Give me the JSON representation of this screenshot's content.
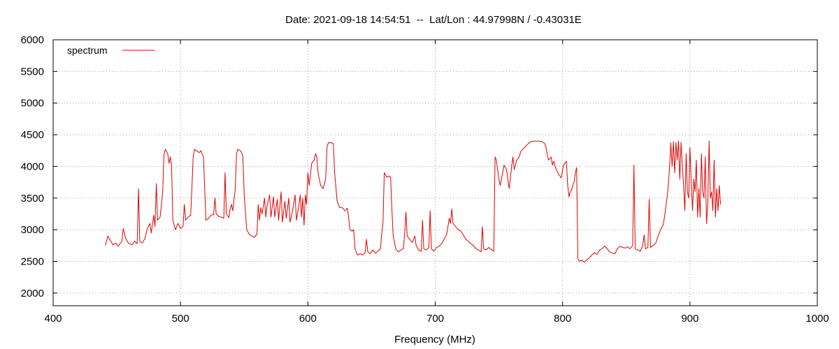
{
  "chart_data": {
    "type": "line",
    "title": "Date: 2021-09-18 14:54:51  --  Lat/Lon : 44.97998N / -0.43031E",
    "xlabel": "Frequency (MHz)",
    "ylabel": "",
    "xlim": [
      400,
      1000
    ],
    "ylim": [
      1800,
      6000
    ],
    "x_ticks": [
      400,
      500,
      600,
      700,
      800,
      900,
      1000
    ],
    "y_ticks": [
      2000,
      2500,
      3000,
      3500,
      4000,
      4500,
      5000,
      5500,
      6000
    ],
    "grid": true,
    "legend_position": "top-left",
    "series": [
      {
        "name": "spectrum",
        "color": "#e00000",
        "points": [
          [
            441,
            2750
          ],
          [
            443,
            2900
          ],
          [
            445,
            2830
          ],
          [
            447,
            2760
          ],
          [
            449,
            2790
          ],
          [
            451,
            2740
          ],
          [
            454,
            2820
          ],
          [
            455,
            3020
          ],
          [
            457,
            2860
          ],
          [
            459,
            2790
          ],
          [
            462,
            2760
          ],
          [
            464,
            2820
          ],
          [
            466,
            2780
          ],
          [
            467,
            3650
          ],
          [
            468,
            2820
          ],
          [
            470,
            2790
          ],
          [
            472,
            2860
          ],
          [
            474,
            3020
          ],
          [
            476,
            3100
          ],
          [
            477,
            2950
          ],
          [
            479,
            3230
          ],
          [
            480,
            3050
          ],
          [
            481,
            3730
          ],
          [
            482,
            3150
          ],
          [
            484,
            3200
          ],
          [
            486,
            3600
          ],
          [
            487,
            4180
          ],
          [
            488,
            4270
          ],
          [
            490,
            4200
          ],
          [
            491,
            4050
          ],
          [
            492,
            4150
          ],
          [
            493,
            4000
          ],
          [
            494,
            3150
          ],
          [
            496,
            3000
          ],
          [
            498,
            3100
          ],
          [
            500,
            3020
          ],
          [
            502,
            3050
          ],
          [
            503,
            3400
          ],
          [
            504,
            3150
          ],
          [
            506,
            3200
          ],
          [
            508,
            3230
          ],
          [
            509,
            3700
          ],
          [
            510,
            4170
          ],
          [
            511,
            4270
          ],
          [
            513,
            4240
          ],
          [
            515,
            4220
          ],
          [
            516,
            4250
          ],
          [
            518,
            4150
          ],
          [
            519,
            3650
          ],
          [
            520,
            3150
          ],
          [
            522,
            3180
          ],
          [
            524,
            3230
          ],
          [
            526,
            3240
          ],
          [
            527,
            3500
          ],
          [
            528,
            3250
          ],
          [
            530,
            3210
          ],
          [
            532,
            3200
          ],
          [
            534,
            3180
          ],
          [
            535,
            3900
          ],
          [
            536,
            3250
          ],
          [
            538,
            3190
          ],
          [
            539,
            3330
          ],
          [
            540,
            3400
          ],
          [
            541,
            3300
          ],
          [
            543,
            3650
          ],
          [
            544,
            4200
          ],
          [
            545,
            4270
          ],
          [
            547,
            4250
          ],
          [
            548,
            4220
          ],
          [
            549,
            4150
          ],
          [
            550,
            3550
          ],
          [
            552,
            3000
          ],
          [
            554,
            2930
          ],
          [
            556,
            2900
          ],
          [
            558,
            2880
          ],
          [
            560,
            2930
          ],
          [
            561,
            3400
          ],
          [
            562,
            3150
          ],
          [
            563,
            3350
          ],
          [
            564,
            3250
          ],
          [
            566,
            3500
          ],
          [
            567,
            3200
          ],
          [
            568,
            3380
          ],
          [
            570,
            3550
          ],
          [
            571,
            3200
          ],
          [
            573,
            3520
          ],
          [
            574,
            3200
          ],
          [
            576,
            3480
          ],
          [
            577,
            3150
          ],
          [
            579,
            3600
          ],
          [
            580,
            3120
          ],
          [
            582,
            3450
          ],
          [
            583,
            3180
          ],
          [
            585,
            3500
          ],
          [
            586,
            3120
          ],
          [
            588,
            3300
          ],
          [
            590,
            3550
          ],
          [
            591,
            3150
          ],
          [
            593,
            3400
          ],
          [
            594,
            3550
          ],
          [
            595,
            3200
          ],
          [
            596,
            3500
          ],
          [
            597,
            3070
          ],
          [
            598,
            3550
          ],
          [
            599,
            3400
          ],
          [
            600,
            3900
          ],
          [
            601,
            3700
          ],
          [
            603,
            4050
          ],
          [
            605,
            4100
          ],
          [
            606,
            4200
          ],
          [
            607,
            4150
          ],
          [
            608,
            3900
          ],
          [
            610,
            3700
          ],
          [
            612,
            3650
          ],
          [
            614,
            3800
          ],
          [
            615,
            4300
          ],
          [
            616,
            4370
          ],
          [
            618,
            4380
          ],
          [
            620,
            4360
          ],
          [
            621,
            3900
          ],
          [
            623,
            3450
          ],
          [
            625,
            3350
          ],
          [
            627,
            3350
          ],
          [
            629,
            3300
          ],
          [
            631,
            3340
          ],
          [
            632,
            3200
          ],
          [
            633,
            3000
          ],
          [
            635,
            2980
          ],
          [
            636,
            3000
          ],
          [
            637,
            2700
          ],
          [
            639,
            2600
          ],
          [
            641,
            2620
          ],
          [
            643,
            2600
          ],
          [
            645,
            2640
          ],
          [
            646,
            2850
          ],
          [
            647,
            2650
          ],
          [
            649,
            2620
          ],
          [
            651,
            2680
          ],
          [
            653,
            2630
          ],
          [
            655,
            2660
          ],
          [
            657,
            2700
          ],
          [
            658,
            2950
          ],
          [
            659,
            3100
          ],
          [
            660,
            3900
          ],
          [
            662,
            3830
          ],
          [
            664,
            3850
          ],
          [
            665,
            3820
          ],
          [
            666,
            3300
          ],
          [
            667,
            2900
          ],
          [
            669,
            2700
          ],
          [
            671,
            2650
          ],
          [
            673,
            2680
          ],
          [
            675,
            2700
          ],
          [
            676,
            2950
          ],
          [
            677,
            3280
          ],
          [
            678,
            2900
          ],
          [
            680,
            2850
          ],
          [
            682,
            2800
          ],
          [
            684,
            2900
          ],
          [
            685,
            2750
          ],
          [
            687,
            2680
          ],
          [
            689,
            2660
          ],
          [
            690,
            3150
          ],
          [
            691,
            2700
          ],
          [
            693,
            2680
          ],
          [
            695,
            2720
          ],
          [
            696,
            3300
          ],
          [
            697,
            2700
          ],
          [
            699,
            2660
          ],
          [
            701,
            2720
          ],
          [
            703,
            2740
          ],
          [
            705,
            2780
          ],
          [
            707,
            2850
          ],
          [
            709,
            2930
          ],
          [
            710,
            3050
          ],
          [
            711,
            3180
          ],
          [
            712,
            3100
          ],
          [
            713,
            3330
          ],
          [
            714,
            3100
          ],
          [
            716,
            3050
          ],
          [
            718,
            3000
          ],
          [
            720,
            2980
          ],
          [
            722,
            2920
          ],
          [
            724,
            2850
          ],
          [
            726,
            2820
          ],
          [
            728,
            2780
          ],
          [
            730,
            2750
          ],
          [
            732,
            2700
          ],
          [
            734,
            2680
          ],
          [
            736,
            2650
          ],
          [
            737,
            3050
          ],
          [
            738,
            2700
          ],
          [
            740,
            2680
          ],
          [
            742,
            2720
          ],
          [
            744,
            2690
          ],
          [
            746,
            2660
          ],
          [
            747,
            4150
          ],
          [
            748,
            4100
          ],
          [
            750,
            3800
          ],
          [
            751,
            3700
          ],
          [
            752,
            3800
          ],
          [
            754,
            4020
          ],
          [
            756,
            3950
          ],
          [
            758,
            3650
          ],
          [
            760,
            4000
          ],
          [
            761,
            4150
          ],
          [
            762,
            3950
          ],
          [
            764,
            4100
          ],
          [
            766,
            4150
          ],
          [
            767,
            4230
          ],
          [
            769,
            4280
          ],
          [
            771,
            4320
          ],
          [
            773,
            4360
          ],
          [
            775,
            4390
          ],
          [
            778,
            4400
          ],
          [
            781,
            4400
          ],
          [
            784,
            4390
          ],
          [
            786,
            4360
          ],
          [
            787,
            4300
          ],
          [
            788,
            4180
          ],
          [
            789,
            4100
          ],
          [
            791,
            4150
          ],
          [
            792,
            4020
          ],
          [
            793,
            4080
          ],
          [
            795,
            3950
          ],
          [
            797,
            3870
          ],
          [
            799,
            3820
          ],
          [
            800,
            3950
          ],
          [
            801,
            4030
          ],
          [
            803,
            4080
          ],
          [
            804,
            3700
          ],
          [
            805,
            3520
          ],
          [
            806,
            3600
          ],
          [
            807,
            3620
          ],
          [
            808,
            3700
          ],
          [
            809,
            3750
          ],
          [
            810,
            3900
          ],
          [
            811,
            3980
          ],
          [
            812,
            2550
          ],
          [
            813,
            2500
          ],
          [
            815,
            2520
          ],
          [
            817,
            2490
          ],
          [
            819,
            2520
          ],
          [
            821,
            2560
          ],
          [
            823,
            2600
          ],
          [
            825,
            2640
          ],
          [
            827,
            2610
          ],
          [
            829,
            2680
          ],
          [
            831,
            2700
          ],
          [
            833,
            2740
          ],
          [
            835,
            2700
          ],
          [
            837,
            2650
          ],
          [
            839,
            2630
          ],
          [
            841,
            2620
          ],
          [
            843,
            2700
          ],
          [
            845,
            2740
          ],
          [
            847,
            2720
          ],
          [
            849,
            2710
          ],
          [
            851,
            2730
          ],
          [
            853,
            2700
          ],
          [
            855,
            2750
          ],
          [
            856,
            4020
          ],
          [
            857,
            2700
          ],
          [
            859,
            2680
          ],
          [
            861,
            2660
          ],
          [
            863,
            2750
          ],
          [
            864,
            2920
          ],
          [
            865,
            2700
          ],
          [
            867,
            2720
          ],
          [
            868,
            3480
          ],
          [
            869,
            2720
          ],
          [
            871,
            2750
          ],
          [
            873,
            2780
          ],
          [
            875,
            2900
          ],
          [
            877,
            3000
          ],
          [
            879,
            3080
          ],
          [
            880,
            3200
          ],
          [
            881,
            3350
          ],
          [
            882,
            3500
          ],
          [
            883,
            3700
          ],
          [
            884,
            4000
          ],
          [
            885,
            4370
          ],
          [
            886,
            4000
          ],
          [
            887,
            4390
          ],
          [
            888,
            3900
          ],
          [
            889,
            4380
          ],
          [
            890,
            4100
          ],
          [
            891,
            4400
          ],
          [
            892,
            3800
          ],
          [
            893,
            4380
          ],
          [
            894,
            4000
          ],
          [
            895,
            3700
          ],
          [
            896,
            3300
          ],
          [
            897,
            4200
          ],
          [
            898,
            3600
          ],
          [
            899,
            3500
          ],
          [
            900,
            4300
          ],
          [
            901,
            3750
          ],
          [
            902,
            3300
          ],
          [
            903,
            3800
          ],
          [
            904,
            3600
          ],
          [
            905,
            4100
          ],
          [
            906,
            3200
          ],
          [
            907,
            3650
          ],
          [
            908,
            3200
          ],
          [
            909,
            4200
          ],
          [
            910,
            3600
          ],
          [
            911,
            3500
          ],
          [
            912,
            4150
          ],
          [
            913,
            3100
          ],
          [
            914,
            3400
          ],
          [
            915,
            4400
          ],
          [
            916,
            3500
          ],
          [
            917,
            3600
          ],
          [
            918,
            3300
          ],
          [
            919,
            4100
          ],
          [
            920,
            3200
          ],
          [
            921,
            3650
          ],
          [
            922,
            3300
          ],
          [
            923,
            3700
          ],
          [
            924,
            3400
          ]
        ]
      }
    ]
  }
}
